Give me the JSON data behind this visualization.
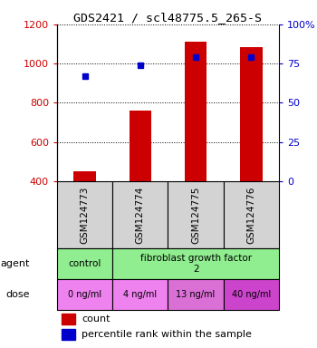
{
  "title": "GDS2421 / scl48775.5_265-S",
  "samples": [
    "GSM124773",
    "GSM124774",
    "GSM124775",
    "GSM124776"
  ],
  "bar_values": [
    450,
    760,
    1110,
    1085
  ],
  "percentile_values": [
    67,
    74,
    79,
    79
  ],
  "bar_color": "#cc0000",
  "percentile_color": "#0000cc",
  "ylim_left": [
    400,
    1200
  ],
  "ylim_right": [
    0,
    100
  ],
  "yticks_left": [
    400,
    600,
    800,
    1000,
    1200
  ],
  "yticks_right": [
    0,
    25,
    50,
    75,
    100
  ],
  "ytick_labels_right": [
    "0",
    "25",
    "50",
    "75",
    "100%"
  ],
  "agent_row_color_control": "#90ee90",
  "agent_row_color_fgf": "#90ee90",
  "dose_row_color_control": "#ee82ee",
  "dose_row_color_fgf_light": "#da70d6",
  "dose_row_color_fgf_dark": "#cc44cc",
  "sample_box_color": "#d3d3d3",
  "legend_count_color": "#cc0000",
  "legend_percentile_color": "#0000cc",
  "dose_labels": [
    "0 ng/ml",
    "4 ng/ml",
    "13 ng/ml",
    "40 ng/ml"
  ],
  "dose_colors": [
    "#ee82ee",
    "#ee82ee",
    "#da70d6",
    "#cc44cc"
  ]
}
